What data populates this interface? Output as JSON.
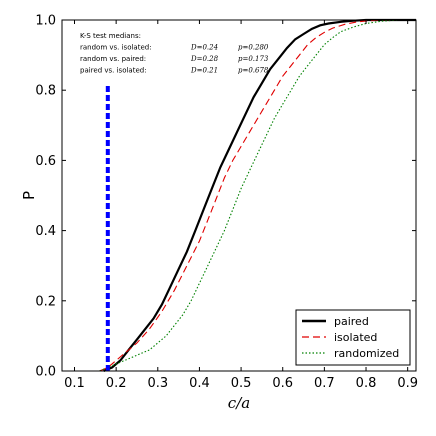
{
  "chart_data": {
    "type": "line",
    "xlabel": "c/a",
    "ylabel": "P",
    "xlim": [
      0.07,
      0.92
    ],
    "ylim": [
      0.0,
      1.0
    ],
    "x_ticks": [
      "0.1",
      "0.2",
      "0.3",
      "0.4",
      "0.5",
      "0.6",
      "0.7",
      "0.8",
      "0.9"
    ],
    "y_ticks": [
      "0.0",
      "0.2",
      "0.4",
      "0.6",
      "0.8",
      "1.0"
    ],
    "legend_position": "bottom-right",
    "annotation": {
      "heading": "K-S test medians:",
      "lines": [
        {
          "label": "random vs. isolated:",
          "D": "D=0.24",
          "p": "p=0.280"
        },
        {
          "label": "random vs. paired:",
          "D": "D=0.28",
          "p": "p=0.173"
        },
        {
          "label": "paired vs. isolated:",
          "D": "D=0.21",
          "p": "p=0.678"
        }
      ]
    },
    "vline": {
      "x": 0.18,
      "y_top": 0.82,
      "color": "#0000ff"
    },
    "series": [
      {
        "name": "paired",
        "color": "#000000",
        "style": "solid",
        "x": [
          0.17,
          0.19,
          0.21,
          0.23,
          0.25,
          0.27,
          0.29,
          0.31,
          0.33,
          0.35,
          0.37,
          0.39,
          0.41,
          0.43,
          0.45,
          0.47,
          0.49,
          0.51,
          0.53,
          0.55,
          0.57,
          0.59,
          0.61,
          0.63,
          0.65,
          0.67,
          0.69,
          0.71,
          0.74,
          0.77,
          0.8,
          0.85,
          0.92
        ],
        "y": [
          0.0,
          0.01,
          0.03,
          0.06,
          0.09,
          0.12,
          0.15,
          0.19,
          0.24,
          0.29,
          0.34,
          0.4,
          0.46,
          0.52,
          0.58,
          0.63,
          0.68,
          0.73,
          0.78,
          0.82,
          0.86,
          0.89,
          0.92,
          0.945,
          0.96,
          0.975,
          0.985,
          0.99,
          0.995,
          0.998,
          1.0,
          1.0,
          1.0
        ]
      },
      {
        "name": "isolated",
        "color": "#e00000",
        "style": "dashed",
        "x": [
          0.16,
          0.18,
          0.2,
          0.22,
          0.25,
          0.28,
          0.31,
          0.34,
          0.37,
          0.4,
          0.42,
          0.44,
          0.46,
          0.48,
          0.5,
          0.52,
          0.54,
          0.56,
          0.58,
          0.6,
          0.62,
          0.64,
          0.66,
          0.68,
          0.7,
          0.72,
          0.75,
          0.78,
          0.82,
          0.87,
          0.92
        ],
        "y": [
          0.0,
          0.01,
          0.03,
          0.05,
          0.08,
          0.12,
          0.17,
          0.23,
          0.3,
          0.37,
          0.43,
          0.49,
          0.55,
          0.6,
          0.64,
          0.68,
          0.72,
          0.76,
          0.8,
          0.84,
          0.87,
          0.9,
          0.93,
          0.95,
          0.965,
          0.977,
          0.988,
          0.995,
          0.999,
          1.0,
          1.0
        ]
      },
      {
        "name": "randomized",
        "color": "#008000",
        "style": "dotted",
        "x": [
          0.16,
          0.18,
          0.2,
          0.22,
          0.24,
          0.26,
          0.28,
          0.3,
          0.32,
          0.34,
          0.36,
          0.38,
          0.4,
          0.42,
          0.44,
          0.46,
          0.48,
          0.5,
          0.52,
          0.54,
          0.56,
          0.58,
          0.6,
          0.62,
          0.64,
          0.66,
          0.68,
          0.7,
          0.72,
          0.74,
          0.77,
          0.8,
          0.84,
          0.88,
          0.92
        ],
        "y": [
          0.0,
          0.01,
          0.02,
          0.03,
          0.04,
          0.05,
          0.06,
          0.08,
          0.1,
          0.13,
          0.16,
          0.2,
          0.25,
          0.3,
          0.35,
          0.4,
          0.46,
          0.52,
          0.57,
          0.62,
          0.67,
          0.72,
          0.76,
          0.8,
          0.84,
          0.87,
          0.9,
          0.93,
          0.95,
          0.967,
          0.98,
          0.99,
          0.997,
          1.0,
          1.0
        ]
      }
    ]
  }
}
